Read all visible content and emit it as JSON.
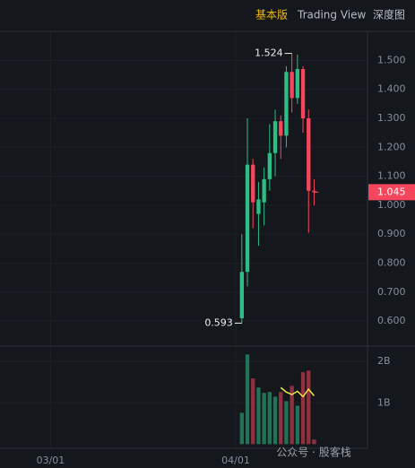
{
  "tabs": [
    "基本版",
    "Trading View",
    "深度图"
  ],
  "watermark": "公众号 · 股客栈",
  "chart_data": {
    "type": "candlestick",
    "x": [
      0,
      1,
      2,
      3,
      4,
      5,
      6,
      7,
      8,
      9,
      10,
      11,
      12,
      13
    ],
    "xlim": [
      -43.5,
      22.6
    ],
    "xticks": [
      {
        "value": -34.4,
        "label": "03/01"
      },
      {
        "value": -1.1,
        "label": "04/01"
      }
    ],
    "open": [
      0.61,
      0.77,
      1.14,
      0.97,
      1.01,
      1.09,
      1.18,
      1.29,
      1.24,
      1.46,
      1.37,
      1.47,
      1.3,
      1.05
    ],
    "high": [
      0.9,
      1.3,
      1.16,
      1.08,
      1.13,
      1.28,
      1.33,
      1.31,
      1.48,
      1.524,
      1.52,
      1.48,
      1.33,
      1.09
    ],
    "low": [
      0.593,
      0.72,
      0.92,
      0.86,
      0.93,
      1.05,
      1.1,
      1.16,
      1.2,
      1.32,
      1.35,
      1.25,
      0.905,
      1.0
    ],
    "close": [
      0.77,
      1.14,
      1.01,
      1.02,
      1.09,
      1.18,
      1.29,
      1.24,
      1.46,
      1.37,
      1.47,
      1.3,
      1.05,
      1.045
    ],
    "up_color": "#2ebd85",
    "down_color": "#f6465d",
    "ylim": [
      0.517,
      1.6
    ],
    "yticks": [
      {
        "value": 0.6,
        "label": "0.600"
      },
      {
        "value": 0.7,
        "label": "0.700"
      },
      {
        "value": 0.8,
        "label": "0.800"
      },
      {
        "value": 0.9,
        "label": "0.900"
      },
      {
        "value": 1.0,
        "label": "1.000"
      },
      {
        "value": 1.1,
        "label": "1.100"
      },
      {
        "value": 1.2,
        "label": "1.200"
      },
      {
        "value": 1.3,
        "label": "1.300"
      },
      {
        "value": 1.4,
        "label": "1.400"
      },
      {
        "value": 1.5,
        "label": "1.500"
      }
    ],
    "volume": [
      0.76,
      2.17,
      1.59,
      1.37,
      1.24,
      1.26,
      1.15,
      1.26,
      1.04,
      1.41,
      0.93,
      1.74,
      1.78,
      0.11
    ],
    "volume_ma": [
      null,
      null,
      null,
      null,
      null,
      null,
      null,
      1.37,
      1.26,
      1.2,
      1.28,
      1.15,
      1.33,
      1.17
    ],
    "volume_ma_color": "#f0e442",
    "volume_ylim": [
      -0.1,
      2.33
    ],
    "volume_yticks": [
      {
        "value": 1,
        "label": "1B"
      },
      {
        "value": 2,
        "label": "2B"
      }
    ],
    "grid": true
  }
}
